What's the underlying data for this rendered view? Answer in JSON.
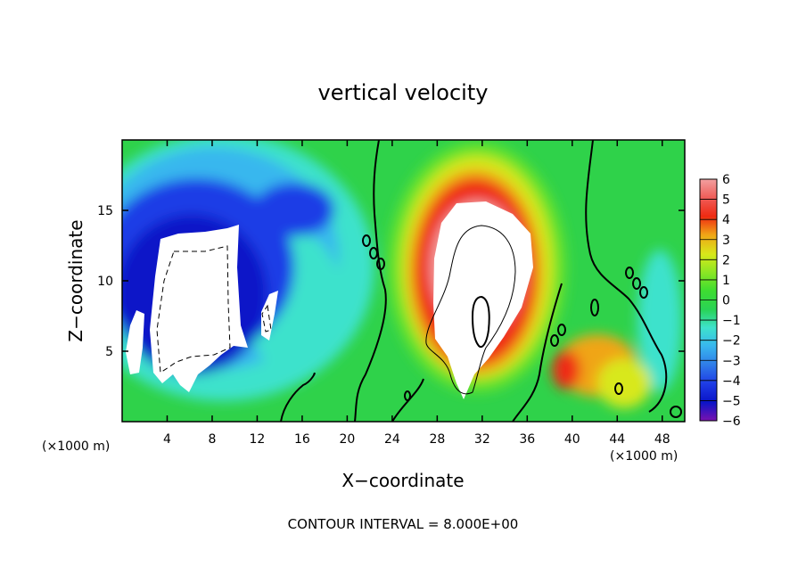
{
  "chart_data": {
    "type": "heatmap",
    "title": "vertical velocity",
    "xlabel": "X−coordinate",
    "ylabel": "Z−coordinate",
    "x_unit": "(×1000 m)",
    "x_unit_right": "(×1000 m)",
    "xlim": [
      0,
      50
    ],
    "ylim": [
      0,
      20
    ],
    "x_ticks": [
      4,
      8,
      12,
      16,
      20,
      24,
      28,
      32,
      36,
      40,
      44,
      48
    ],
    "y_ticks": [
      5,
      10,
      15
    ],
    "colorbar": {
      "range": [
        -6,
        6
      ],
      "ticks": [
        6,
        5,
        4,
        3,
        2,
        1,
        0,
        -1,
        -2,
        -3,
        -4,
        -5,
        -6
      ],
      "tick_labels": [
        "6",
        "5",
        "4",
        "3",
        "2",
        "1",
        "0",
        "−1",
        "−2",
        "−3",
        "−4",
        "−5",
        "−6"
      ]
    },
    "contour_label": "CONTOUR INTERVAL = 8.000E+00",
    "colors": {
      "neg6": "#7a12b0",
      "neg5": "#0a14c8",
      "neg4": "#1e3ce6",
      "neg3": "#2f7be8",
      "neg2": "#38b7ee",
      "neg1": "#3ee2cc",
      "zero": "#29d356",
      "pos1": "#5be52a",
      "pos2": "#c6e81c",
      "pos3": "#f0a516",
      "pos4": "#ef2a12",
      "pos5": "#ef5a55",
      "pos6": "#f2a0a0",
      "saturated": "#ffffff"
    }
  }
}
